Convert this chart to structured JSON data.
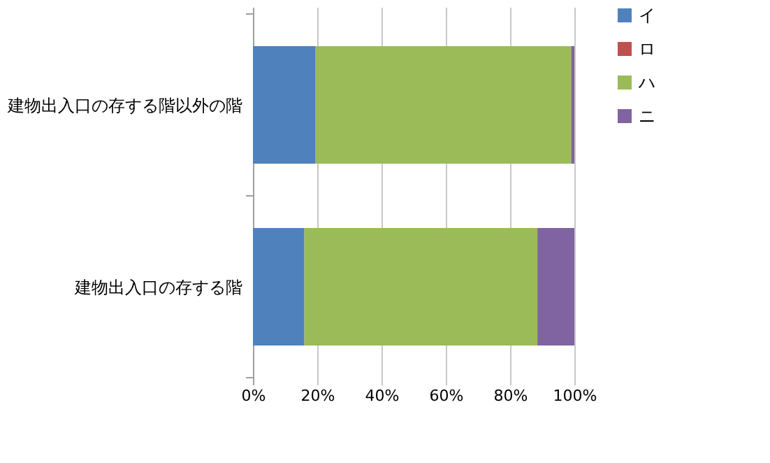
{
  "chart_data": {
    "type": "bar",
    "orientation": "horizontal",
    "stacked": true,
    "categories": [
      "建物出入口の存する階以外の階",
      "建物出入口の存する階"
    ],
    "series": [
      {
        "name": "イ",
        "color": "#4f81bd",
        "values": [
          19.5,
          16
        ]
      },
      {
        "name": "ロ",
        "color": "#c0504d",
        "values": [
          0,
          0
        ]
      },
      {
        "name": "ハ",
        "color": "#9bbb59",
        "values": [
          79.5,
          72.5
        ]
      },
      {
        "name": "ニ",
        "color": "#8064a2",
        "values": [
          1,
          11.5
        ]
      }
    ],
    "xlim": [
      0,
      100
    ],
    "xticks": [
      {
        "value": 0,
        "label": "0%"
      },
      {
        "value": 20,
        "label": "20%"
      },
      {
        "value": 40,
        "label": "40%"
      },
      {
        "value": 60,
        "label": "60%"
      },
      {
        "value": 80,
        "label": "80%"
      },
      {
        "value": 100,
        "label": "100%"
      }
    ],
    "grid": "x",
    "legend": "right"
  }
}
